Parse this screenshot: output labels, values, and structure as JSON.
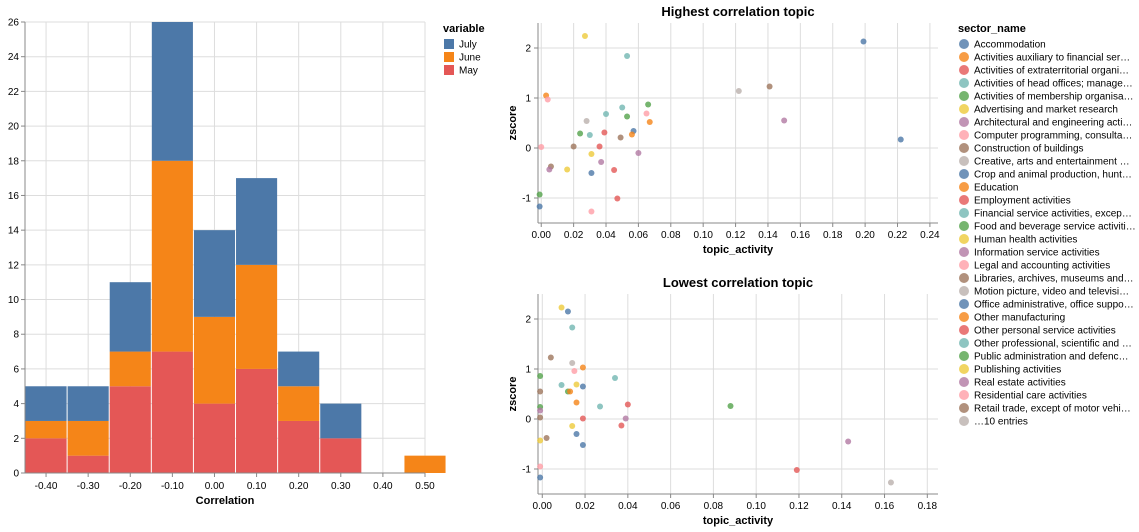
{
  "chart_data": [
    {
      "type": "bar",
      "stacked": true,
      "xlabel": "Correlation",
      "ylabel": "",
      "xlim": [
        -0.45,
        0.5
      ],
      "ylim": [
        0,
        26
      ],
      "x_ticks": [
        -0.4,
        -0.3,
        -0.2,
        -0.1,
        0.0,
        0.1,
        0.2,
        0.3,
        0.4,
        0.5
      ],
      "x_tick_labels": [
        "-0.40",
        "-0.30",
        "-0.20",
        "-0.10",
        "0.00",
        "0.10",
        "0.20",
        "0.30",
        "0.40",
        "0.50"
      ],
      "y_ticks": [
        0,
        2,
        4,
        6,
        8,
        10,
        12,
        14,
        16,
        18,
        20,
        22,
        24,
        26
      ],
      "bins": [
        [
          -0.45,
          -0.35
        ],
        [
          -0.35,
          -0.25
        ],
        [
          -0.25,
          -0.15
        ],
        [
          -0.15,
          -0.05
        ],
        [
          -0.05,
          0.05
        ],
        [
          0.05,
          0.15
        ],
        [
          0.15,
          0.25
        ],
        [
          0.25,
          0.35
        ],
        [
          0.35,
          0.45
        ],
        [
          0.45,
          0.55
        ]
      ],
      "legend": {
        "title": "variable",
        "position": "right"
      },
      "series": [
        {
          "name": "May",
          "color": "#e45756",
          "values": [
            2,
            1,
            5,
            7,
            4,
            6,
            3,
            2,
            0,
            0
          ]
        },
        {
          "name": "June",
          "color": "#f58518",
          "values": [
            1,
            2,
            2,
            11,
            5,
            6,
            2,
            0,
            0,
            1
          ]
        },
        {
          "name": "July",
          "color": "#4c78a8",
          "values": [
            2,
            2,
            4,
            8,
            5,
            5,
            2,
            2,
            0,
            0
          ]
        }
      ],
      "legend_order": [
        "July",
        "June",
        "May"
      ]
    },
    {
      "type": "scatter",
      "title": "Highest correlation topic",
      "xlabel": "topic_activity",
      "ylabel": "zscore",
      "xlim": [
        -0.002,
        0.245
      ],
      "ylim": [
        -1.5,
        2.5
      ],
      "x_ticks": [
        0.0,
        0.02,
        0.04,
        0.06,
        0.08,
        0.1,
        0.12,
        0.14,
        0.16,
        0.18,
        0.2,
        0.22,
        0.24
      ],
      "x_tick_labels": [
        "0.00",
        "0.02",
        "0.04",
        "0.06",
        "0.08",
        "0.10",
        "0.12",
        "0.14",
        "0.16",
        "0.18",
        "0.20",
        "0.22",
        "0.24"
      ],
      "y_ticks": [
        -1,
        0,
        1,
        2
      ],
      "points": [
        {
          "x": 0.199,
          "y": 2.13,
          "c": 0
        },
        {
          "x": 0.222,
          "y": 0.17,
          "c": 10
        },
        {
          "x": 0.141,
          "y": 1.23,
          "c": 8
        },
        {
          "x": 0.122,
          "y": 1.14,
          "c": 9
        },
        {
          "x": 0.15,
          "y": 0.55,
          "c": 6
        },
        {
          "x": 0.027,
          "y": 2.24,
          "c": 5
        },
        {
          "x": 0.053,
          "y": 1.84,
          "c": 3
        },
        {
          "x": 0.003,
          "y": 1.05,
          "c": 21
        },
        {
          "x": 0.004,
          "y": 0.97,
          "c": 7
        },
        {
          "x": 0.066,
          "y": 0.87,
          "c": 14
        },
        {
          "x": 0.05,
          "y": 0.81,
          "c": 13
        },
        {
          "x": 0.065,
          "y": 0.69,
          "c": 7
        },
        {
          "x": 0.04,
          "y": 0.68,
          "c": 23
        },
        {
          "x": 0.053,
          "y": 0.63,
          "c": 24
        },
        {
          "x": 0.067,
          "y": 0.52,
          "c": 11
        },
        {
          "x": 0.028,
          "y": 0.54,
          "c": 9
        },
        {
          "x": 0.057,
          "y": 0.34,
          "c": 20
        },
        {
          "x": 0.039,
          "y": 0.31,
          "c": 2
        },
        {
          "x": 0.024,
          "y": 0.29,
          "c": 14
        },
        {
          "x": 0.056,
          "y": 0.27,
          "c": 1
        },
        {
          "x": 0.03,
          "y": 0.26,
          "c": 3
        },
        {
          "x": 0.049,
          "y": 0.21,
          "c": 18
        },
        {
          "x": 0.0,
          "y": 0.02,
          "c": 17
        },
        {
          "x": 0.02,
          "y": 0.03,
          "c": 8
        },
        {
          "x": 0.036,
          "y": 0.03,
          "c": 22
        },
        {
          "x": 0.031,
          "y": -0.12,
          "c": 5
        },
        {
          "x": 0.06,
          "y": -0.1,
          "c": 6
        },
        {
          "x": 0.037,
          "y": -0.28,
          "c": 16
        },
        {
          "x": 0.006,
          "y": -0.37,
          "c": 18
        },
        {
          "x": 0.005,
          "y": -0.43,
          "c": 16
        },
        {
          "x": 0.016,
          "y": -0.43,
          "c": 25
        },
        {
          "x": 0.031,
          "y": -0.5,
          "c": 20
        },
        {
          "x": 0.045,
          "y": -0.44,
          "c": 12
        },
        {
          "x": 0.047,
          "y": -1.01,
          "c": 2
        },
        {
          "x": -0.001,
          "y": -0.93,
          "c": 4
        },
        {
          "x": -0.001,
          "y": -1.17,
          "c": 10
        },
        {
          "x": 0.031,
          "y": -1.27,
          "c": 7
        }
      ]
    },
    {
      "type": "scatter",
      "title": "Lowest correlation topic",
      "xlabel": "topic_activity",
      "ylabel": "zscore",
      "xlim": [
        -0.002,
        0.185
      ],
      "ylim": [
        -1.5,
        2.5
      ],
      "x_ticks": [
        0.0,
        0.02,
        0.04,
        0.06,
        0.08,
        0.1,
        0.12,
        0.14,
        0.16,
        0.18
      ],
      "x_tick_labels": [
        "0.00",
        "0.02",
        "0.04",
        "0.06",
        "0.08",
        "0.10",
        "0.12",
        "0.14",
        "0.16",
        "0.18"
      ],
      "y_ticks": [
        -1,
        0,
        1,
        2
      ],
      "points": [
        {
          "x": 0.009,
          "y": 2.23,
          "c": 15
        },
        {
          "x": 0.012,
          "y": 2.15,
          "c": 10
        },
        {
          "x": 0.014,
          "y": 1.83,
          "c": 3
        },
        {
          "x": 0.004,
          "y": 1.23,
          "c": 8
        },
        {
          "x": 0.014,
          "y": 1.12,
          "c": 9
        },
        {
          "x": 0.019,
          "y": 1.03,
          "c": 21
        },
        {
          "x": 0.015,
          "y": 0.96,
          "c": 7
        },
        {
          "x": -0.001,
          "y": 0.86,
          "c": 14
        },
        {
          "x": 0.034,
          "y": 0.82,
          "c": 13
        },
        {
          "x": 0.016,
          "y": 0.69,
          "c": 5
        },
        {
          "x": 0.009,
          "y": 0.68,
          "c": 23
        },
        {
          "x": 0.019,
          "y": 0.65,
          "c": 20
        },
        {
          "x": 0.012,
          "y": 0.55,
          "c": 24
        },
        {
          "x": 0.013,
          "y": 0.55,
          "c": 1
        },
        {
          "x": -0.001,
          "y": 0.55,
          "c": 18
        },
        {
          "x": 0.016,
          "y": 0.33,
          "c": 11
        },
        {
          "x": 0.04,
          "y": 0.29,
          "c": 2
        },
        {
          "x": 0.027,
          "y": 0.25,
          "c": 3
        },
        {
          "x": 0.088,
          "y": 0.26,
          "c": 14
        },
        {
          "x": -0.001,
          "y": 0.24,
          "c": 4
        },
        {
          "x": -0.001,
          "y": 0.17,
          "c": 6
        },
        {
          "x": -0.001,
          "y": 0.03,
          "c": 8
        },
        {
          "x": 0.019,
          "y": 0.01,
          "c": 22
        },
        {
          "x": 0.039,
          "y": 0.01,
          "c": 16
        },
        {
          "x": 0.014,
          "y": -0.14,
          "c": 15
        },
        {
          "x": 0.037,
          "y": -0.13,
          "c": 12
        },
        {
          "x": 0.016,
          "y": -0.3,
          "c": 10
        },
        {
          "x": 0.002,
          "y": -0.38,
          "c": 18
        },
        {
          "x": 0.019,
          "y": -0.52,
          "c": 20
        },
        {
          "x": -0.001,
          "y": -0.43,
          "c": 25
        },
        {
          "x": 0.143,
          "y": -0.45,
          "c": 6
        },
        {
          "x": 0.119,
          "y": -1.02,
          "c": 2
        },
        {
          "x": -0.001,
          "y": -0.95,
          "c": 17
        },
        {
          "x": -0.001,
          "y": -1.17,
          "c": 0
        },
        {
          "x": 0.163,
          "y": -1.27,
          "c": 19
        }
      ]
    }
  ],
  "scatter_legend": {
    "title": "sector_name",
    "entries": [
      {
        "label": "Accommodation",
        "color": "#4c78a8"
      },
      {
        "label": "Activities auxiliary to financial ser…",
        "color": "#f58518"
      },
      {
        "label": "Activities of extraterritorial organi…",
        "color": "#e45756"
      },
      {
        "label": "Activities of head offices; manage…",
        "color": "#72b7b2"
      },
      {
        "label": "Activities of membership organisa…",
        "color": "#54a24b"
      },
      {
        "label": "Advertising and market research",
        "color": "#eeca3b"
      },
      {
        "label": "Architectural and engineering acti…",
        "color": "#b279a2"
      },
      {
        "label": "Computer programming, consulta…",
        "color": "#ff9da6"
      },
      {
        "label": "Construction of buildings",
        "color": "#9d755d"
      },
      {
        "label": "Creative, arts and entertainment …",
        "color": "#bab0ac"
      },
      {
        "label": "Crop and animal production, hunt…",
        "color": "#4c78a8"
      },
      {
        "label": "Education",
        "color": "#f58518"
      },
      {
        "label": "Employment activities",
        "color": "#e45756"
      },
      {
        "label": "Financial service activities, excep…",
        "color": "#72b7b2"
      },
      {
        "label": "Food and beverage service activiti…",
        "color": "#54a24b"
      },
      {
        "label": "Human health activities",
        "color": "#eeca3b"
      },
      {
        "label": "Information service activities",
        "color": "#b279a2"
      },
      {
        "label": "Legal and accounting activities",
        "color": "#ff9da6"
      },
      {
        "label": "Libraries, archives, museums and…",
        "color": "#9d755d"
      },
      {
        "label": "Motion picture, video and televisi…",
        "color": "#bab0ac"
      },
      {
        "label": "Office administrative, office suppo…",
        "color": "#4c78a8"
      },
      {
        "label": "Other manufacturing",
        "color": "#f58518"
      },
      {
        "label": "Other personal service activities",
        "color": "#e45756"
      },
      {
        "label": "Other professional, scientific and …",
        "color": "#72b7b2"
      },
      {
        "label": "Public administration and defenc…",
        "color": "#54a24b"
      },
      {
        "label": "Publishing activities",
        "color": "#eeca3b"
      },
      {
        "label": "Real estate activities",
        "color": "#b279a2"
      },
      {
        "label": "Residential care activities",
        "color": "#ff9da6"
      },
      {
        "label": "Retail trade, except of motor vehi…",
        "color": "#9d755d"
      },
      {
        "label": "…10 entries",
        "color": "#bab0ac"
      }
    ]
  }
}
